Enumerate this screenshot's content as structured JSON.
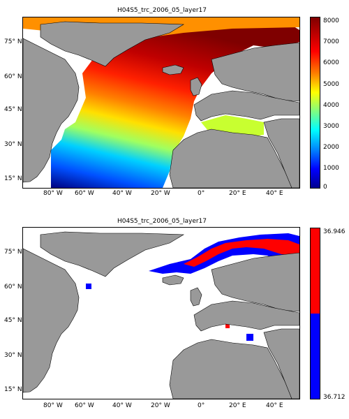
{
  "panels": [
    {
      "title": "H04S5_trc_2006_05_layer17",
      "lat_labels": [
        "75° N",
        "60° N",
        "45° N",
        "30° N",
        "15° N"
      ],
      "lon_labels": [
        "80° W",
        "60° W",
        "40° W",
        "20° W",
        "0°",
        "20° E",
        "40° E"
      ],
      "colorbar": {
        "type": "continuous",
        "colormap": "jet",
        "min": 0,
        "max": 8000,
        "ticks": [
          "8000",
          "7000",
          "6000",
          "5000",
          "4000",
          "3000",
          "2000",
          "1000",
          "0"
        ]
      }
    },
    {
      "title": "H04S5_trc_2006_05_layer17",
      "lat_labels": [
        "75° N",
        "60° N",
        "45° N",
        "30° N",
        "15° N"
      ],
      "lon_labels": [
        "80° W",
        "60° W",
        "40° W",
        "20° W",
        "0°",
        "20° E",
        "40° E"
      ],
      "colorbar": {
        "type": "binary",
        "top_color": "#ff0000",
        "bottom_color": "#0000ff",
        "max_label": "36.946",
        "min_label": "36.712"
      }
    }
  ],
  "colors": {
    "land": "#999999",
    "ocean_blank": "#ffffff",
    "high": "#ff0000",
    "low": "#0000ff"
  }
}
